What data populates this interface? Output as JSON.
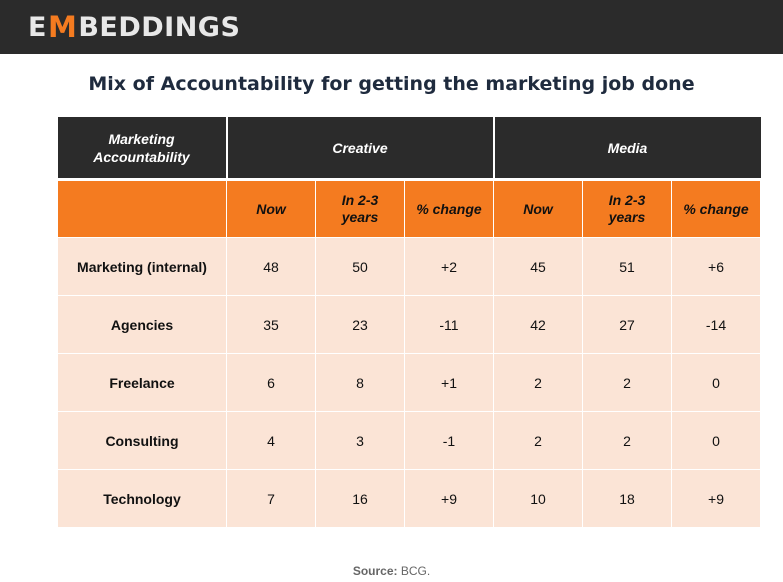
{
  "header": {
    "logo_prefix": "E",
    "logo_mark": "M",
    "logo_suffix": "BEDDINGS"
  },
  "title": "Mix of Accountability for getting the marketing job done",
  "table": {
    "corner_label": "Marketing Accountability",
    "groups": [
      "Creative",
      "Media"
    ],
    "subheaders": [
      "Now",
      "In 2-3 years",
      "% change",
      "Now",
      "In 2-3 years",
      "% change"
    ],
    "rows": [
      {
        "label": "Marketing (internal)",
        "values": [
          "48",
          "50",
          "+2",
          "45",
          "51",
          "+6"
        ]
      },
      {
        "label": "Agencies",
        "values": [
          "35",
          "23",
          "-11",
          "42",
          "27",
          "-14"
        ]
      },
      {
        "label": "Freelance",
        "values": [
          "6",
          "8",
          "+1",
          "2",
          "2",
          "0"
        ]
      },
      {
        "label": "Consulting",
        "values": [
          "4",
          "3",
          "-1",
          "2",
          "2",
          "0"
        ]
      },
      {
        "label": "Technology",
        "values": [
          "7",
          "16",
          "+9",
          "10",
          "18",
          "+9"
        ]
      }
    ]
  },
  "source": {
    "label": "Source:",
    "value": "BCG."
  },
  "colors": {
    "topbar": "#2b2b2b",
    "accent": "#f47b20",
    "row_fill": "#fbe4d6",
    "title": "#1f2b3e"
  }
}
